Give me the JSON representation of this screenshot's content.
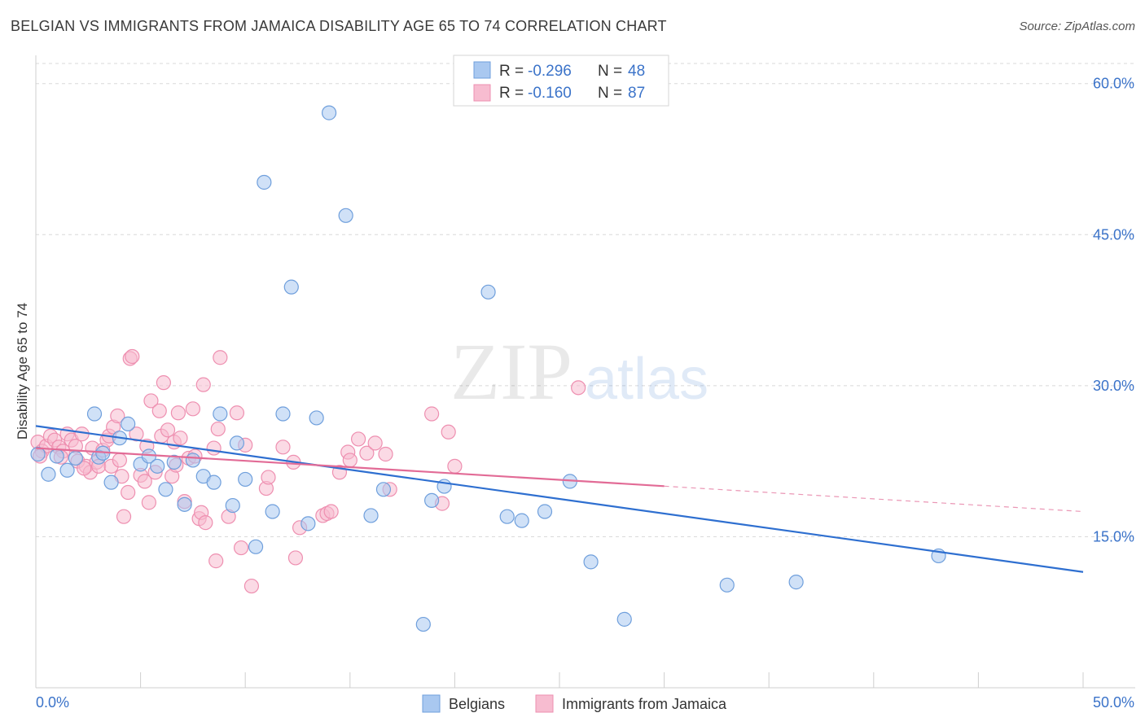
{
  "title": "BELGIAN VS IMMIGRANTS FROM JAMAICA DISABILITY AGE 65 TO 74 CORRELATION CHART",
  "source": "Source: ZipAtlas.com",
  "watermark": {
    "zip": "ZIP",
    "atlas": "atlas"
  },
  "colors": {
    "belgian_fill": "#a9c8f0",
    "belgian_stroke": "#6f9fdc",
    "belgian_line": "#2e6fd0",
    "jamaica_fill": "#f7bcd0",
    "jamaica_stroke": "#ee8fb0",
    "jamaica_line": "#e26b96",
    "tick_text": "#3b73c9",
    "grid": "#d8d8d8"
  },
  "legend": {
    "rows": [
      {
        "r_label": "R =",
        "r_value": "-0.296",
        "n_label": "N =",
        "n_value": "48"
      },
      {
        "r_label": "R =",
        "r_value": "-0.160",
        "n_label": "N =",
        "n_value": "87"
      }
    ]
  },
  "bottom_legend": [
    "Belgians",
    "Immigrants from Jamaica"
  ],
  "chart_data": {
    "type": "scatter",
    "title": "BELGIAN VS IMMIGRANTS FROM JAMAICA DISABILITY AGE 65 TO 74 CORRELATION CHART",
    "xlabel": "",
    "ylabel": "Disability Age 65 to 74",
    "xlim": [
      0,
      50
    ],
    "ylim": [
      0,
      62
    ],
    "x_tick_labels": [
      "0.0%",
      "50.0%"
    ],
    "y_ticks": [
      15,
      30,
      45,
      60
    ],
    "y_tick_labels": [
      "15.0%",
      "30.0%",
      "45.0%",
      "60.0%"
    ],
    "grid": true,
    "legend_position": "top-center",
    "series": [
      {
        "name": "Belgians",
        "r": -0.296,
        "n": 48,
        "trend": {
          "x": [
            0,
            50
          ],
          "y": [
            26.0,
            11.5
          ],
          "dashed_from": null
        },
        "points": [
          [
            0.1,
            23.2
          ],
          [
            0.6,
            21.2
          ],
          [
            1.0,
            23.0
          ],
          [
            1.5,
            21.6
          ],
          [
            1.9,
            22.8
          ],
          [
            2.8,
            27.2
          ],
          [
            3.0,
            22.9
          ],
          [
            3.2,
            23.3
          ],
          [
            3.6,
            20.4
          ],
          [
            4.0,
            24.8
          ],
          [
            4.4,
            26.2
          ],
          [
            5.0,
            22.2
          ],
          [
            5.4,
            23.0
          ],
          [
            5.8,
            22.0
          ],
          [
            6.2,
            19.7
          ],
          [
            6.6,
            22.4
          ],
          [
            7.1,
            18.2
          ],
          [
            7.5,
            22.6
          ],
          [
            8.0,
            21.0
          ],
          [
            8.5,
            20.4
          ],
          [
            8.8,
            27.2
          ],
          [
            9.4,
            18.1
          ],
          [
            9.6,
            24.3
          ],
          [
            10.0,
            20.7
          ],
          [
            10.5,
            14.0
          ],
          [
            10.9,
            50.2
          ],
          [
            11.3,
            17.5
          ],
          [
            11.8,
            27.2
          ],
          [
            12.2,
            39.8
          ],
          [
            13.0,
            16.3
          ],
          [
            13.4,
            26.8
          ],
          [
            14.0,
            57.1
          ],
          [
            14.8,
            46.9
          ],
          [
            16.0,
            17.1
          ],
          [
            16.6,
            19.7
          ],
          [
            18.5,
            6.3
          ],
          [
            18.9,
            18.6
          ],
          [
            19.5,
            20.0
          ],
          [
            21.6,
            39.3
          ],
          [
            22.5,
            17.0
          ],
          [
            23.2,
            16.6
          ],
          [
            24.3,
            17.5
          ],
          [
            25.5,
            20.5
          ],
          [
            26.5,
            12.5
          ],
          [
            28.1,
            6.8
          ],
          [
            33.0,
            10.2
          ],
          [
            36.3,
            10.5
          ],
          [
            43.1,
            13.1
          ]
        ]
      },
      {
        "name": "Immigrants from Jamaica",
        "r": -0.16,
        "n": 87,
        "trend": {
          "x": [
            0,
            50
          ],
          "y": [
            23.8,
            17.5
          ],
          "dashed_from": 30
        },
        "points": [
          [
            0.1,
            24.4
          ],
          [
            0.3,
            23.5
          ],
          [
            0.5,
            24.0
          ],
          [
            0.7,
            25.0
          ],
          [
            0.9,
            24.6
          ],
          [
            1.1,
            23.9
          ],
          [
            1.3,
            23.5
          ],
          [
            1.5,
            25.2
          ],
          [
            1.7,
            24.6
          ],
          [
            1.9,
            24.0
          ],
          [
            2.0,
            22.5
          ],
          [
            2.2,
            25.2
          ],
          [
            2.4,
            22.0
          ],
          [
            2.6,
            21.4
          ],
          [
            2.7,
            23.8
          ],
          [
            2.9,
            22.4
          ],
          [
            3.0,
            22.0
          ],
          [
            3.2,
            23.6
          ],
          [
            3.4,
            24.6
          ],
          [
            3.5,
            25.0
          ],
          [
            3.6,
            22.0
          ],
          [
            3.7,
            25.9
          ],
          [
            3.9,
            27.0
          ],
          [
            4.0,
            22.6
          ],
          [
            4.1,
            21.0
          ],
          [
            4.2,
            17.0
          ],
          [
            4.4,
            19.4
          ],
          [
            4.5,
            32.7
          ],
          [
            4.6,
            32.9
          ],
          [
            4.8,
            25.2
          ],
          [
            5.0,
            21.1
          ],
          [
            5.2,
            20.5
          ],
          [
            5.4,
            18.4
          ],
          [
            5.5,
            28.5
          ],
          [
            5.7,
            21.4
          ],
          [
            5.9,
            27.5
          ],
          [
            6.0,
            25.0
          ],
          [
            6.1,
            30.3
          ],
          [
            6.3,
            25.6
          ],
          [
            6.5,
            21.0
          ],
          [
            6.6,
            24.4
          ],
          [
            6.8,
            27.3
          ],
          [
            6.9,
            24.8
          ],
          [
            7.1,
            18.5
          ],
          [
            7.3,
            22.8
          ],
          [
            7.5,
            27.7
          ],
          [
            7.6,
            23.0
          ],
          [
            7.8,
            16.8
          ],
          [
            7.9,
            17.4
          ],
          [
            8.0,
            30.1
          ],
          [
            8.1,
            16.4
          ],
          [
            8.5,
            23.8
          ],
          [
            8.6,
            12.6
          ],
          [
            8.7,
            25.7
          ],
          [
            8.8,
            32.8
          ],
          [
            9.2,
            17.0
          ],
          [
            9.6,
            27.3
          ],
          [
            9.8,
            13.9
          ],
          [
            10.0,
            24.1
          ],
          [
            10.3,
            10.1
          ],
          [
            11.0,
            19.8
          ],
          [
            11.1,
            20.9
          ],
          [
            12.3,
            22.4
          ],
          [
            12.4,
            12.9
          ],
          [
            12.6,
            15.9
          ],
          [
            13.7,
            17.1
          ],
          [
            13.9,
            17.3
          ],
          [
            14.1,
            17.5
          ],
          [
            14.9,
            23.4
          ],
          [
            15.0,
            22.6
          ],
          [
            15.4,
            24.7
          ],
          [
            15.8,
            23.3
          ],
          [
            16.2,
            24.3
          ],
          [
            16.7,
            23.2
          ],
          [
            16.9,
            19.7
          ],
          [
            18.9,
            27.2
          ],
          [
            19.4,
            18.3
          ],
          [
            19.7,
            25.4
          ],
          [
            20.0,
            22.0
          ],
          [
            25.9,
            29.8
          ],
          [
            0.2,
            23.0
          ],
          [
            1.2,
            22.9
          ],
          [
            2.3,
            21.8
          ],
          [
            5.3,
            24.0
          ],
          [
            6.7,
            22.1
          ],
          [
            11.8,
            23.9
          ],
          [
            14.5,
            21.4
          ]
        ]
      }
    ]
  }
}
